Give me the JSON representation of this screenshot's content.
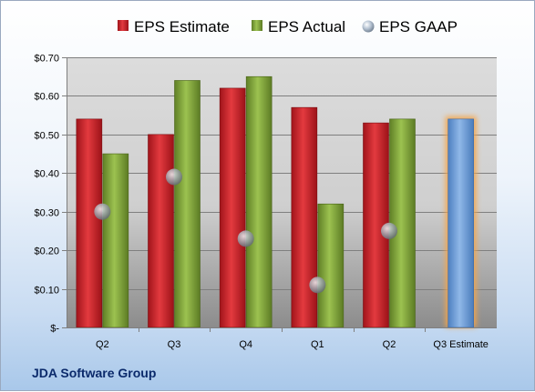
{
  "chart_data": {
    "type": "bar",
    "categories": [
      "Q2",
      "Q3",
      "Q4",
      "Q1",
      "Q2",
      "Q3 Estimate"
    ],
    "series": [
      {
        "name": "EPS Estimate",
        "kind": "bar",
        "color": "#c8242a",
        "values": [
          0.54,
          0.5,
          0.62,
          0.57,
          0.53,
          null
        ]
      },
      {
        "name": "EPS Actual",
        "kind": "bar",
        "color": "#7ea23b",
        "values": [
          0.45,
          0.64,
          0.65,
          0.32,
          0.54,
          null
        ]
      },
      {
        "name": "EPS GAAP",
        "kind": "marker",
        "color": "#9aa3ad",
        "values": [
          0.3,
          0.39,
          0.23,
          0.11,
          0.25,
          null
        ]
      }
    ],
    "highlight": {
      "category": "Q3 Estimate",
      "value": 0.54,
      "color": "#6f9fd8",
      "glow": "#f5a54a"
    },
    "ylim": [
      0,
      0.7
    ],
    "yticks": [
      {
        "value": 0.7,
        "label": "$0.70"
      },
      {
        "value": 0.6,
        "label": "$0.60"
      },
      {
        "value": 0.5,
        "label": "$0.50"
      },
      {
        "value": 0.4,
        "label": "$0.40"
      },
      {
        "value": 0.3,
        "label": "$0.30"
      },
      {
        "value": 0.2,
        "label": "$0.20"
      },
      {
        "value": 0.1,
        "label": "$0.10"
      },
      {
        "value": 0,
        "label": "$-"
      }
    ],
    "grid": true,
    "legend_position": "top"
  },
  "company": "JDA Software Group"
}
